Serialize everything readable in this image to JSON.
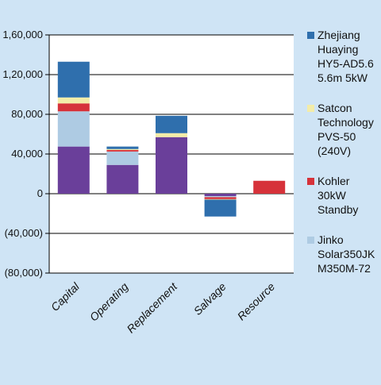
{
  "colors": {
    "background": "#cfe4f5",
    "plot_background": "#ffffff",
    "gridline": "#000000"
  },
  "chart_data": {
    "type": "bar",
    "stacked": true,
    "title": "",
    "xlabel": "",
    "ylabel": "",
    "ylim": [
      -80000,
      160000
    ],
    "yticks": [
      160000,
      120000,
      80000,
      40000,
      0,
      -40000,
      -80000
    ],
    "ytick_labels": [
      "1,60,000",
      "1,20,000",
      "80,000",
      "40,000",
      "0",
      "(40,000)",
      "(80,000)"
    ],
    "grid": true,
    "legend_position": "right",
    "categories": [
      "Capital",
      "Operating",
      "Replacement",
      "Salvage",
      "Resource"
    ],
    "series": [
      {
        "name": "",
        "color": "#6a3f9a",
        "values": [
          47500,
          29000,
          57000,
          -2500,
          0
        ]
      },
      {
        "name": "Jinko Solar350JK M350M-72",
        "color": "#aecbe3",
        "values": [
          35500,
          13500,
          0,
          -1000,
          0
        ]
      },
      {
        "name": "Kohler 30kW Standby",
        "color": "#d6323a",
        "values": [
          8000,
          1500,
          0,
          -2000,
          13000
        ]
      },
      {
        "name": "Satcon Technology PVS-50 (240V)",
        "color": "#f3eca8",
        "values": [
          6000,
          1000,
          4000,
          -500,
          0
        ]
      },
      {
        "name": "Zhejiang Huaying HY5-AD5.6 5.6m 5kW",
        "color": "#2f6fad",
        "values": [
          36000,
          2500,
          17500,
          -17000,
          0
        ]
      }
    ],
    "legend": [
      {
        "lines": [
          "Zhejiang",
          "Huaying",
          "HY5-AD5.6",
          "5.6m 5kW"
        ],
        "color": "#2f6fad"
      },
      {
        "lines": [
          "Satcon",
          "Technology",
          "PVS-50",
          "(240V)"
        ],
        "color": "#f3eca8"
      },
      {
        "lines": [
          "Kohler",
          "30kW",
          "Standby"
        ],
        "color": "#d6323a"
      },
      {
        "lines": [
          "Jinko",
          "Solar350JK",
          "M350M-72"
        ],
        "color": "#aecbe3"
      }
    ]
  }
}
